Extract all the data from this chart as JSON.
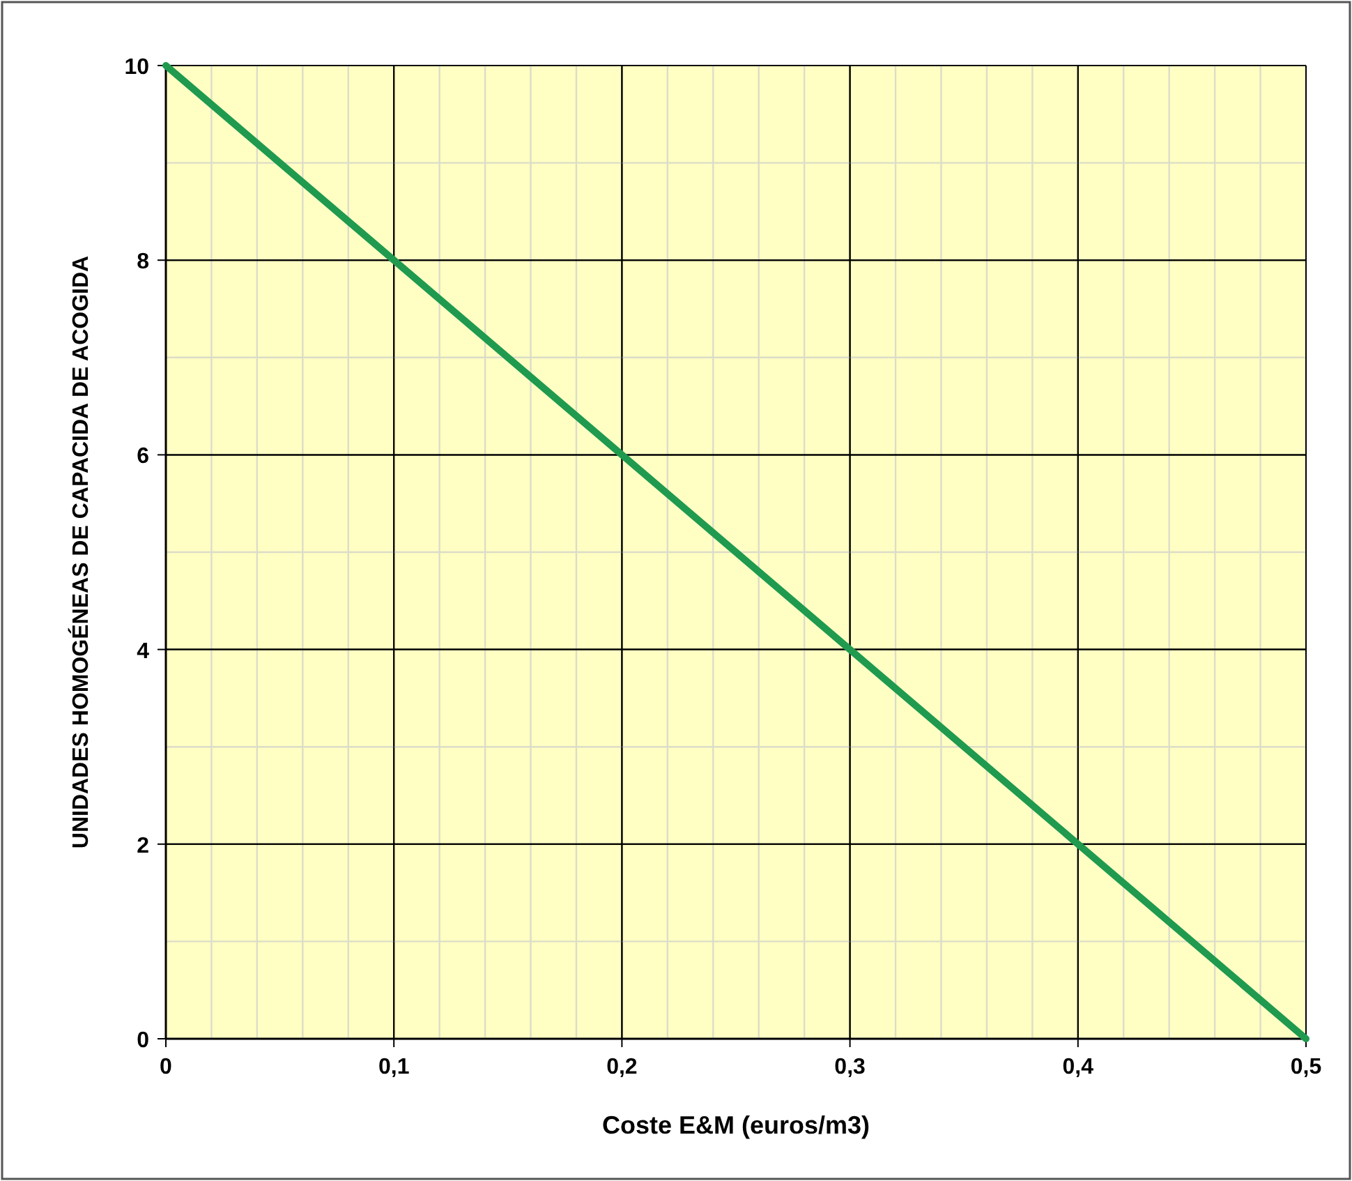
{
  "chart_data": {
    "type": "line",
    "xlabel": "Coste E&M (euros/m3)",
    "ylabel": "UNIDADES HOMOGÉNEAS DE CAPACIDA DE ACOGIDA",
    "x": [
      0,
      0.5
    ],
    "series": [
      {
        "color": "#1f9a4f",
        "values": [
          10,
          0
        ]
      }
    ],
    "xlim": [
      0,
      0.5
    ],
    "ylim": [
      0,
      10
    ],
    "xticks": [
      0,
      {
        "value": 0.02,
        "label": null
      },
      {
        "value": 0.04,
        "label": null
      },
      {
        "value": 0.06,
        "label": null
      },
      {
        "value": 0.08,
        "label": null
      },
      {
        "value": 0.1,
        "label": "0,1"
      },
      {
        "value": 0.12,
        "label": null
      },
      {
        "value": 0.14,
        "label": null
      },
      {
        "value": 0.16,
        "label": null
      },
      {
        "value": 0.18,
        "label": null
      },
      {
        "value": 0.2,
        "label": "0,2"
      },
      {
        "value": 0.22,
        "label": null
      },
      {
        "value": 0.24,
        "label": null
      },
      {
        "value": 0.26,
        "label": null
      },
      {
        "value": 0.28,
        "label": null
      },
      {
        "value": 0.3,
        "label": "0,3"
      },
      {
        "value": 0.32,
        "label": null
      },
      {
        "value": 0.34,
        "label": null
      },
      {
        "value": 0.36,
        "label": null
      },
      {
        "value": 0.38,
        "label": null
      },
      {
        "value": 0.4,
        "label": "0,4"
      },
      {
        "value": 0.42,
        "label": null
      },
      {
        "value": 0.44,
        "label": null
      },
      {
        "value": 0.46,
        "label": null
      },
      {
        "value": 0.48,
        "label": null
      },
      {
        "value": 0.5,
        "label": "0,5"
      }
    ],
    "yticks": [
      0,
      {
        "value": 1,
        "label": null
      },
      2,
      {
        "value": 3,
        "label": null
      },
      4,
      {
        "value": 5,
        "label": null
      },
      6,
      {
        "value": 7,
        "label": null
      },
      8,
      {
        "value": 9,
        "label": null
      },
      10
    ],
    "grid": true,
    "marker": "none",
    "line_style": "solid"
  }
}
